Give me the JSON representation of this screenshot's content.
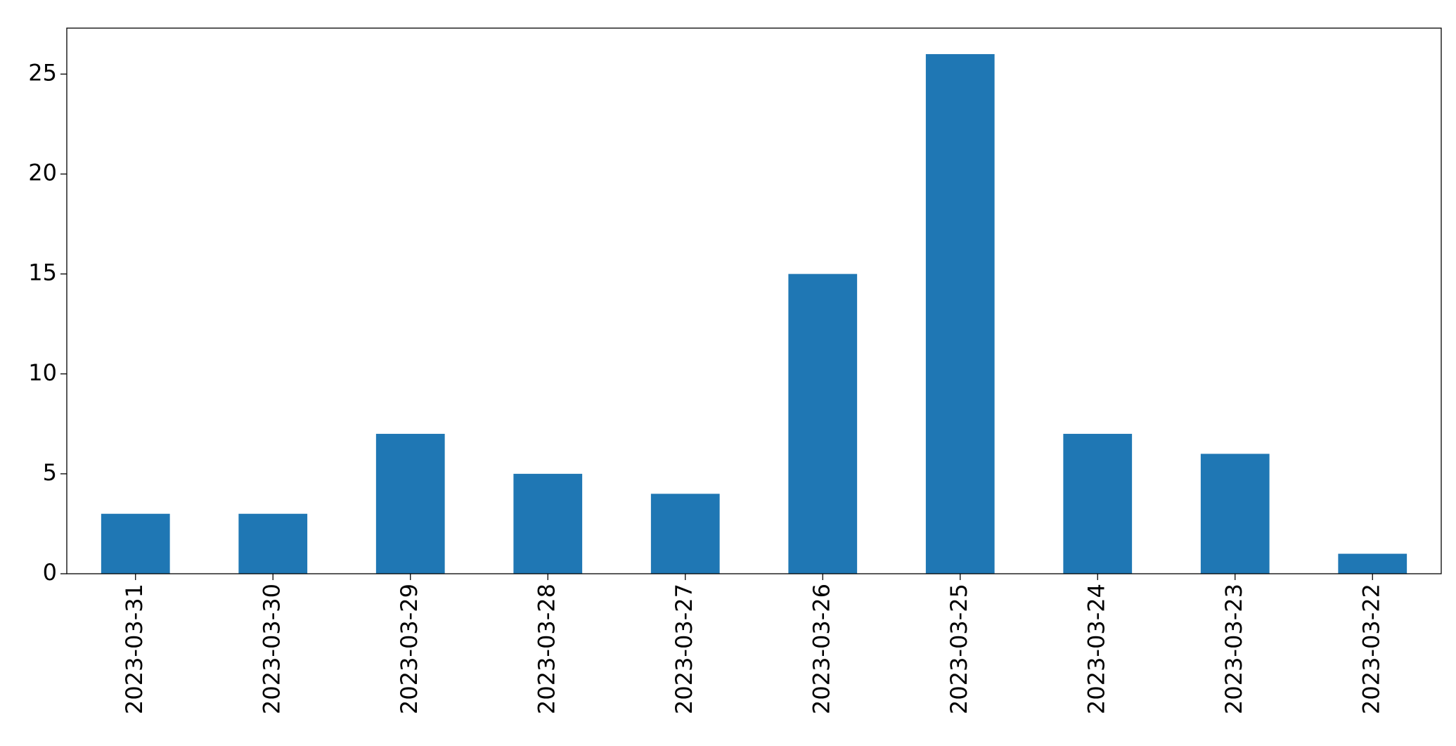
{
  "chart_data": {
    "type": "bar",
    "categories": [
      "2023-03-31",
      "2023-03-30",
      "2023-03-29",
      "2023-03-28",
      "2023-03-27",
      "2023-03-26",
      "2023-03-25",
      "2023-03-24",
      "2023-03-23",
      "2023-03-22"
    ],
    "values": [
      3,
      3,
      7,
      5,
      4,
      15,
      26,
      7,
      6,
      1
    ],
    "color": "#1f77b4",
    "ylim": [
      0,
      27.3
    ],
    "yticks": [
      0,
      5,
      10,
      15,
      20,
      25
    ],
    "grid": false
  }
}
